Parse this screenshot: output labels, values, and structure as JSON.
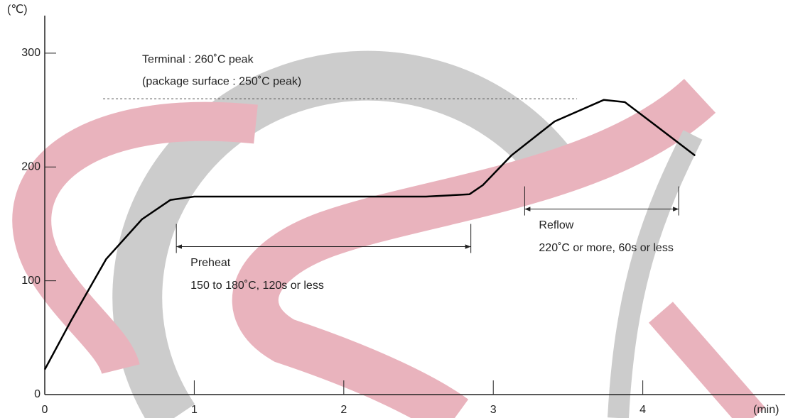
{
  "chart_data": {
    "type": "line",
    "y_unit_label": "(℃)",
    "x_unit_label": "(min)",
    "x": [
      0,
      0.18,
      0.41,
      0.65,
      0.84,
      1.0,
      1.6,
      2.55,
      2.84,
      2.93,
      3.12,
      3.41,
      3.74,
      3.88,
      4.07,
      4.35
    ],
    "series": [
      {
        "color": "#000000",
        "values": [
          22,
          66,
          119,
          154,
          171,
          174,
          174,
          174,
          176,
          184,
          210,
          240,
          259,
          257,
          238,
          210
        ]
      }
    ],
    "xlim": [
      0,
      4.9
    ],
    "ylim": [
      0,
      333
    ],
    "xticks": [
      0,
      1,
      2,
      3,
      4
    ],
    "yticks": [
      0,
      100,
      200,
      300
    ],
    "peak_line": {
      "value": 260,
      "x_range": [
        0.39,
        3.56
      ],
      "labels": [
        "Terminal : 260˚C peak",
        "(package surface : 250˚C peak)"
      ]
    },
    "ranges": [
      {
        "name": "Preheat",
        "label": "150 to 180˚C, 120s or less",
        "x_range": [
          0.88,
          2.85
        ],
        "y": 130
      },
      {
        "name": "Reflow",
        "label": "220˚C or more, 60s or less",
        "x_range": [
          3.21,
          4.24
        ],
        "y": 163
      }
    ]
  }
}
